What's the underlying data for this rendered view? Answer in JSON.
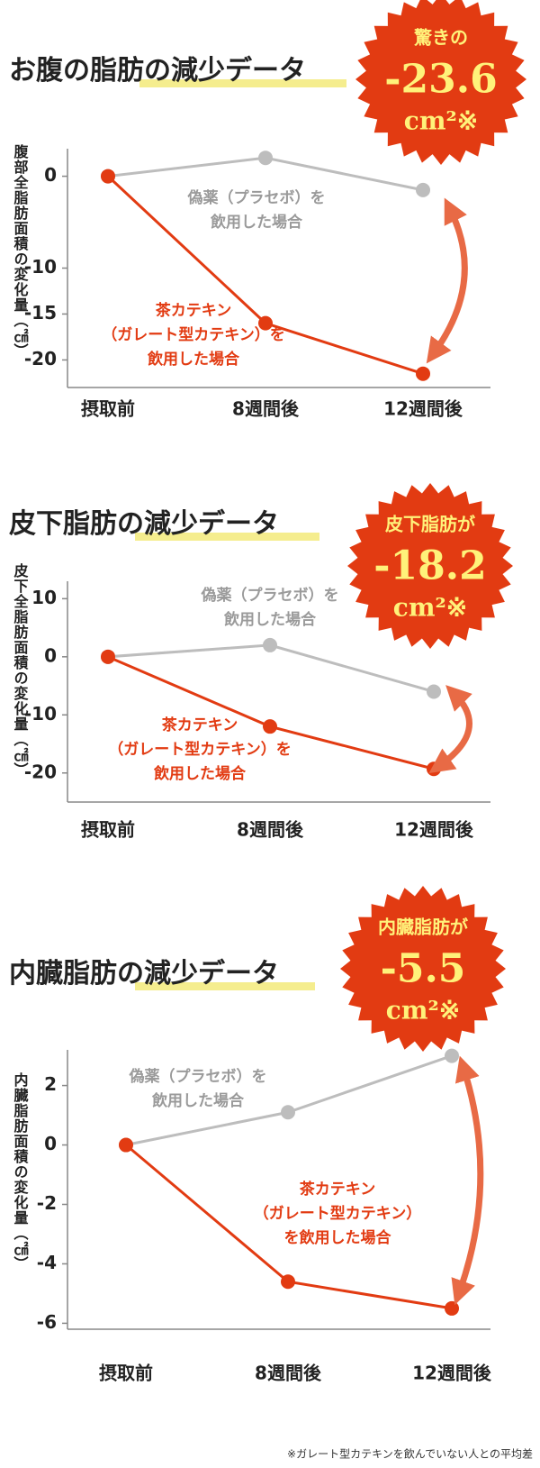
{
  "chart_data": [
    {
      "type": "line",
      "title": "お腹の脂肪の減少データ",
      "ylabel": "腹部全脂肪面積の変化量（㎠）",
      "categories": [
        "摂取前",
        "8週間後",
        "12週間後"
      ],
      "series": [
        {
          "name": "偽薬（プラセボ）を\n飲用した場合",
          "color": "#bdbdbd",
          "values": [
            0,
            2,
            -1.5
          ]
        },
        {
          "name": "茶カテキン\n（ガレート型カテキン）を\n飲用した場合",
          "color": "#e23b12",
          "values": [
            0,
            -16,
            -21.5
          ]
        }
      ],
      "ylim": [
        -23,
        3
      ],
      "yticks": [
        0,
        -10,
        -15,
        -20
      ],
      "badge": {
        "lead": "驚きの",
        "value": "-23.6",
        "unit": "cm²※"
      }
    },
    {
      "type": "line",
      "title": "皮下脂肪の減少データ",
      "ylabel": "皮下全脂肪面積の変化量（㎠）",
      "categories": [
        "摂取前",
        "8週間後",
        "12週間後"
      ],
      "series": [
        {
          "name": "偽薬（プラセボ）を\n飲用した場合",
          "color": "#bdbdbd",
          "values": [
            0,
            2,
            -6
          ]
        },
        {
          "name": "茶カテキン\n（ガレート型カテキン）を\n飲用した場合",
          "color": "#e23b12",
          "values": [
            0,
            -12,
            -19.3
          ]
        }
      ],
      "ylim": [
        -25,
        13
      ],
      "yticks": [
        10,
        0,
        -10,
        -20
      ],
      "badge": {
        "lead": "皮下脂肪が",
        "value": "-18.2",
        "unit": "cm²※"
      }
    },
    {
      "type": "line",
      "title": "内臓脂肪の減少データ",
      "ylabel": "内臓脂肪面積の変化量（㎠）",
      "categories": [
        "摂取前",
        "8週間後",
        "12週間後"
      ],
      "series": [
        {
          "name": "偽薬（プラセボ）を\n飲用した場合",
          "color": "#bdbdbd",
          "values": [
            0,
            1.1,
            3
          ]
        },
        {
          "name": "茶カテキン\n（ガレート型カテキン）\nを飲用した場合",
          "color": "#e23b12",
          "values": [
            0,
            -4.6,
            -5.5
          ]
        }
      ],
      "ylim": [
        -6.2,
        3.2
      ],
      "yticks": [
        2,
        0,
        -2,
        -4,
        -6
      ],
      "badge": {
        "lead": "内臓脂肪が",
        "value": "-5.5",
        "unit": "cm²※"
      }
    }
  ],
  "footnote": "※ガレート型カテキンを飲んでいない人との平均差"
}
